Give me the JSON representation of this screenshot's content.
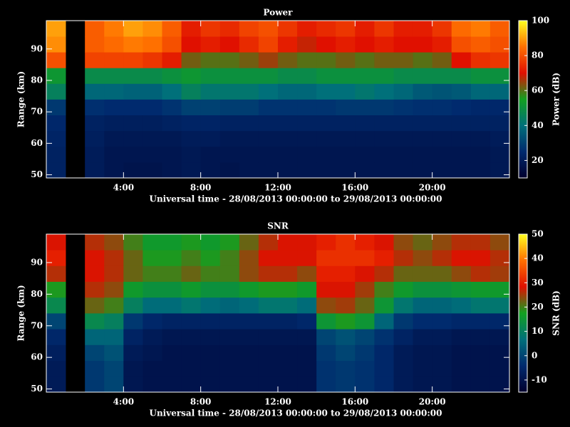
{
  "chart_data": [
    {
      "type": "heatmap",
      "title": "Power",
      "xlabel": "Universal time - 28/08/2013 00:00:00 to 29/08/2013 00:00:00",
      "ylabel": "Range (km)",
      "colorbar_label": "Power (dB)",
      "x": [
        0.5,
        1.5,
        2.5,
        3.5,
        4.5,
        5.5,
        6.5,
        7.5,
        8.5,
        9.5,
        10.5,
        11.5,
        12.5,
        13.5,
        14.5,
        15.5,
        16.5,
        17.5,
        18.5,
        19.5,
        20.5,
        21.5,
        22.5,
        23.5
      ],
      "y": [
        51.5,
        56.5,
        61.5,
        66.5,
        71.5,
        76.5,
        81.5,
        86.5,
        91.5,
        96.5
      ],
      "z": [
        [
          22,
          null,
          20,
          18,
          17,
          17,
          18,
          19,
          18,
          17,
          18,
          18,
          18,
          18,
          18,
          18,
          18,
          18,
          18,
          18,
          18,
          18,
          18,
          19
        ],
        [
          22,
          null,
          20,
          18,
          18,
          18,
          18,
          19,
          18,
          18,
          18,
          18,
          18,
          18,
          18,
          18,
          18,
          18,
          18,
          18,
          18,
          18,
          18,
          19
        ],
        [
          23,
          null,
          21,
          19,
          19,
          19,
          19,
          20,
          20,
          19,
          19,
          19,
          19,
          19,
          19,
          19,
          19,
          19,
          19,
          19,
          19,
          19,
          19,
          20
        ],
        [
          24,
          null,
          22,
          21,
          21,
          21,
          22,
          23,
          23,
          22,
          22,
          22,
          22,
          22,
          22,
          22,
          22,
          22,
          22,
          22,
          22,
          22,
          22,
          22
        ],
        [
          28,
          null,
          26,
          25,
          25,
          25,
          27,
          30,
          30,
          29,
          29,
          27,
          27,
          27,
          27,
          28,
          28,
          28,
          27,
          26,
          26,
          25,
          24,
          24
        ],
        [
          45,
          null,
          38,
          38,
          37,
          37,
          40,
          45,
          42,
          42,
          42,
          40,
          38,
          38,
          40,
          40,
          42,
          40,
          38,
          35,
          34,
          35,
          38,
          38
        ],
        [
          52,
          null,
          48,
          48,
          48,
          48,
          50,
          52,
          50,
          50,
          50,
          50,
          48,
          48,
          50,
          50,
          50,
          50,
          48,
          48,
          48,
          48,
          50,
          50
        ],
        [
          80,
          null,
          78,
          78,
          78,
          76,
          72,
          62,
          60,
          60,
          62,
          65,
          62,
          60,
          60,
          62,
          60,
          62,
          62,
          60,
          62,
          70,
          75,
          76
        ],
        [
          88,
          null,
          82,
          84,
          86,
          85,
          80,
          70,
          72,
          70,
          74,
          78,
          72,
          68,
          70,
          72,
          70,
          72,
          70,
          70,
          72,
          80,
          82,
          80
        ],
        [
          90,
          null,
          82,
          86,
          90,
          88,
          82,
          72,
          76,
          74,
          78,
          80,
          76,
          72,
          74,
          76,
          72,
          76,
          72,
          72,
          76,
          84,
          86,
          82
        ]
      ],
      "xlim": [
        0,
        24
      ],
      "ylim": [
        49,
        99
      ],
      "xticks": [
        {
          "value": 4,
          "label": "4:00"
        },
        {
          "value": 8,
          "label": "8:00"
        },
        {
          "value": 12,
          "label": "12:00"
        },
        {
          "value": 16,
          "label": "16:00"
        },
        {
          "value": 20,
          "label": "20:00"
        }
      ],
      "yticks": [
        50,
        60,
        70,
        80,
        90
      ],
      "clim": [
        10,
        100
      ],
      "cticks": [
        20,
        40,
        60,
        80,
        100
      ],
      "colormap": [
        "#00002e",
        "#002a6e",
        "#00707a",
        "#12a020",
        "#e01000",
        "#ff7000",
        "#ffff20"
      ]
    },
    {
      "type": "heatmap",
      "title": "SNR",
      "xlabel": "Universal time - 28/08/2013 00:00:00 to 29/08/2013 00:00:00",
      "ylabel": "Range (km)",
      "colorbar_label": "SNR (dB)",
      "x": [
        0.5,
        1.5,
        2.5,
        3.5,
        4.5,
        5.5,
        6.5,
        7.5,
        8.5,
        9.5,
        10.5,
        11.5,
        12.5,
        13.5,
        14.5,
        15.5,
        16.5,
        17.5,
        18.5,
        19.5,
        20.5,
        21.5,
        22.5,
        23.5
      ],
      "y": [
        51.5,
        56.5,
        61.5,
        66.5,
        71.5,
        76.5,
        81.5,
        86.5,
        91.5,
        96.5
      ],
      "z": [
        [
          -8,
          null,
          -2,
          0,
          -9,
          -10,
          -10,
          -10,
          -10,
          -10,
          -10,
          -10,
          -10,
          -10,
          -3,
          -2,
          -3,
          -5,
          -8,
          -9,
          -9,
          -10,
          -10,
          -10
        ],
        [
          -8,
          null,
          -2,
          0,
          -9,
          -10,
          -10,
          -10,
          -10,
          -10,
          -10,
          -10,
          -10,
          -10,
          -3,
          -2,
          -3,
          -5,
          -8,
          -9,
          -9,
          -10,
          -10,
          -10
        ],
        [
          -7,
          null,
          0,
          2,
          -8,
          -9,
          -10,
          -10,
          -10,
          -10,
          -10,
          -10,
          -10,
          -10,
          -2,
          0,
          -2,
          -5,
          -8,
          -9,
          -9,
          -10,
          -10,
          -10
        ],
        [
          -5,
          null,
          5,
          5,
          -6,
          -8,
          -9,
          -9,
          -9,
          -9,
          -9,
          -9,
          -9,
          -9,
          0,
          2,
          0,
          -3,
          -6,
          -8,
          -8,
          -9,
          -9,
          -9
        ],
        [
          0,
          null,
          12,
          10,
          -2,
          -5,
          -6,
          -6,
          -6,
          -6,
          -6,
          -6,
          -6,
          -5,
          15,
          18,
          15,
          5,
          -2,
          -4,
          -4,
          -5,
          -5,
          -5
        ],
        [
          12,
          null,
          22,
          20,
          10,
          6,
          6,
          8,
          6,
          5,
          6,
          8,
          8,
          6,
          24,
          25,
          22,
          15,
          8,
          5,
          5,
          6,
          8,
          8
        ],
        [
          18,
          null,
          26,
          24,
          16,
          14,
          14,
          16,
          14,
          14,
          16,
          18,
          18,
          16,
          28,
          28,
          25,
          20,
          16,
          14,
          14,
          15,
          16,
          16
        ],
        [
          26,
          null,
          28,
          26,
          22,
          20,
          20,
          22,
          20,
          20,
          24,
          26,
          26,
          24,
          30,
          30,
          28,
          26,
          22,
          22,
          22,
          24,
          26,
          25
        ],
        [
          30,
          null,
          28,
          26,
          22,
          18,
          18,
          20,
          18,
          20,
          24,
          28,
          28,
          28,
          32,
          32,
          32,
          30,
          26,
          24,
          26,
          28,
          28,
          26
        ],
        [
          28,
          null,
          26,
          24,
          20,
          16,
          16,
          18,
          16,
          18,
          22,
          26,
          28,
          28,
          30,
          32,
          30,
          28,
          24,
          22,
          24,
          26,
          26,
          24
        ]
      ],
      "xlim": [
        0,
        24
      ],
      "ylim": [
        49,
        99
      ],
      "xticks": [
        {
          "value": 4,
          "label": "4:00"
        },
        {
          "value": 8,
          "label": "8:00"
        },
        {
          "value": 12,
          "label": "12:00"
        },
        {
          "value": 16,
          "label": "16:00"
        },
        {
          "value": 20,
          "label": "20:00"
        }
      ],
      "yticks": [
        50,
        60,
        70,
        80,
        90
      ],
      "clim": [
        -15,
        50
      ],
      "cticks": [
        -10,
        0,
        10,
        20,
        30,
        40,
        50
      ],
      "colormap": [
        "#00002e",
        "#002a6e",
        "#00707a",
        "#12a020",
        "#e01000",
        "#ff7000",
        "#ffff20"
      ]
    }
  ]
}
